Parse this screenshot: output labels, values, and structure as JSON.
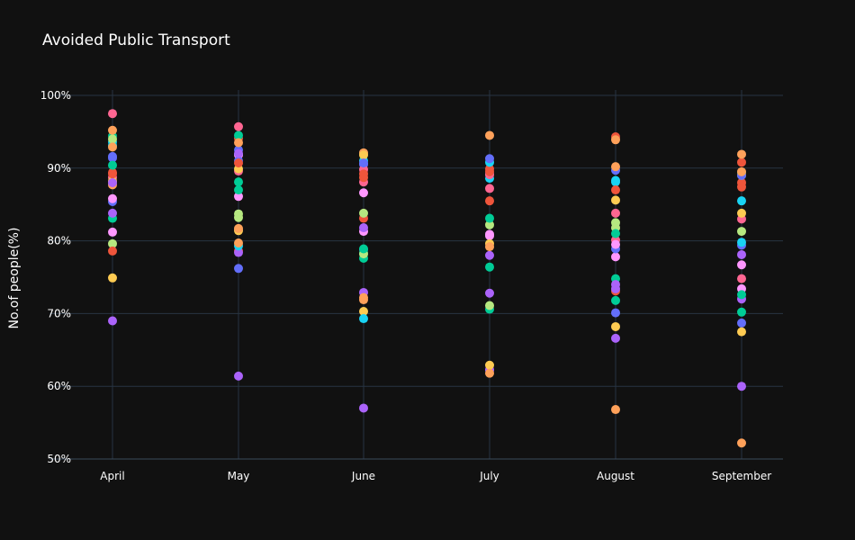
{
  "chart_data": {
    "type": "scatter",
    "title": "Avoided Public Transport",
    "xlabel": "",
    "ylabel": "No.of people(%)",
    "categories": [
      "April",
      "May",
      "June",
      "July",
      "August",
      "September"
    ],
    "y_ticks": [
      "50%",
      "60%",
      "70%",
      "80%",
      "90%",
      "100%"
    ],
    "ylim": [
      50,
      100
    ],
    "grid": true,
    "legend": "none",
    "background": "#111111",
    "colors": [
      "#636efa",
      "#EF553B",
      "#00cc96",
      "#ab63fa",
      "#FFA15A",
      "#19d3f3",
      "#FF6692",
      "#B6E880",
      "#FF97FF",
      "#FECB52"
    ],
    "series": [
      {
        "values": [
          85.4,
          92.5,
          90.5,
          62.2,
          70.1,
          68.7
        ]
      },
      {
        "values": [
          89.4,
          94.1,
          83.1,
          89.9,
          94.3,
          90.8
        ]
      },
      {
        "values": [
          94.4,
          94.5,
          77.6,
          70.6,
          74.8,
          89.4
        ]
      },
      {
        "values": [
          69.0,
          61.4,
          57.0,
          62.3,
          66.6,
          60.0
        ]
      },
      {
        "values": [
          95.2,
          93.5,
          92.1,
          94.5,
          93.9,
          91.9
        ]
      },
      {
        "values": [
          93.6,
          91.9,
          91.0,
          88.6,
          88.3,
          85.5
        ]
      },
      {
        "values": [
          97.5,
          95.7,
          88.1,
          87.2,
          83.8,
          74.8
        ]
      },
      {
        "values": [
          79.6,
          83.7,
          83.8,
          82.2,
          81.8,
          81.3
        ]
      },
      {
        "values": [
          81.2,
          86.1,
          81.3,
          80.7,
          77.8,
          73.4
        ]
      },
      {
        "values": [
          74.9,
          81.4,
          70.3,
          62.9,
          68.2,
          67.5
        ]
      },
      {
        "values": [
          91.4,
          76.2,
          78.8,
          89.2,
          78.9,
          79.4
        ]
      },
      {
        "values": [
          78.6,
          78.6,
          88.7,
          85.5,
          73.1,
          88.0
        ]
      },
      {
        "values": [
          83.1,
          88.1,
          78.3,
          83.1,
          71.8,
          70.2
        ]
      },
      {
        "values": [
          83.8,
          78.4,
          72.9,
          72.8,
          73.4,
          72.0
        ]
      },
      {
        "values": [
          87.7,
          81.7,
          72.2,
          61.8,
          56.8,
          52.2
        ]
      },
      {
        "values": [
          93.1,
          79.3,
          69.3,
          90.8,
          88.1,
          79.8
        ]
      },
      {
        "values": [
          88.7,
          89.6,
          89.8,
          89.1,
          80.1,
          83.0
        ]
      },
      {
        "values": [
          94.0,
          83.2,
          78.2,
          71.1,
          82.5,
          89.0
        ]
      },
      {
        "values": [
          85.8,
          91.8,
          86.6,
          80.9,
          79.5,
          76.7
        ]
      },
      {
        "values": [
          88.2,
          89.9,
          91.8,
          79.6,
          85.6,
          83.8
        ]
      },
      {
        "values": [
          91.6,
          91.0,
          90.7,
          91.3,
          89.7,
          89.0
        ]
      },
      {
        "values": [
          89.2,
          90.7,
          89.2,
          89.5,
          87.0,
          87.4
        ]
      },
      {
        "values": [
          90.4,
          87.0,
          78.9,
          76.4,
          81.0,
          72.6
        ]
      },
      {
        "values": [
          88.0,
          92.0,
          81.8,
          78.0,
          74.0,
          78.1
        ]
      },
      {
        "values": [
          92.9,
          79.7,
          71.9,
          79.2,
          90.2,
          89.5
        ]
      }
    ]
  }
}
